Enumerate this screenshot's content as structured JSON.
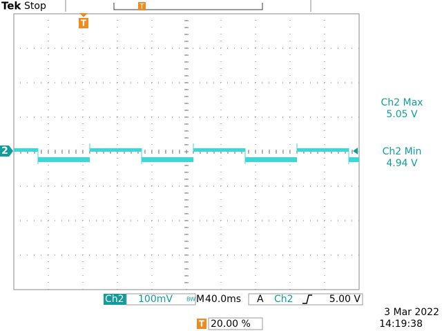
{
  "header": {
    "brand": "Tek",
    "status": "Stop",
    "position_marker": "T",
    "trigger_marker": "T"
  },
  "channel_marker": "2",
  "readouts": [
    {
      "label": "Ch2 Max",
      "value": "5.05 V"
    },
    {
      "label": "Ch2 Min",
      "value": "4.94 V"
    }
  ],
  "status_bar": {
    "channel": "Ch2",
    "scale": "100mV",
    "bw": "BW",
    "timebase_prefix": "M",
    "timebase": "40.0ms",
    "trigger_mode": "A",
    "trigger_source": "Ch2",
    "trigger_level": "5.00 V",
    "trigger_marker": "T",
    "trigger_position": "20.00 %",
    "date": "3 Mar 2022",
    "time": "14:19:38"
  }
}
